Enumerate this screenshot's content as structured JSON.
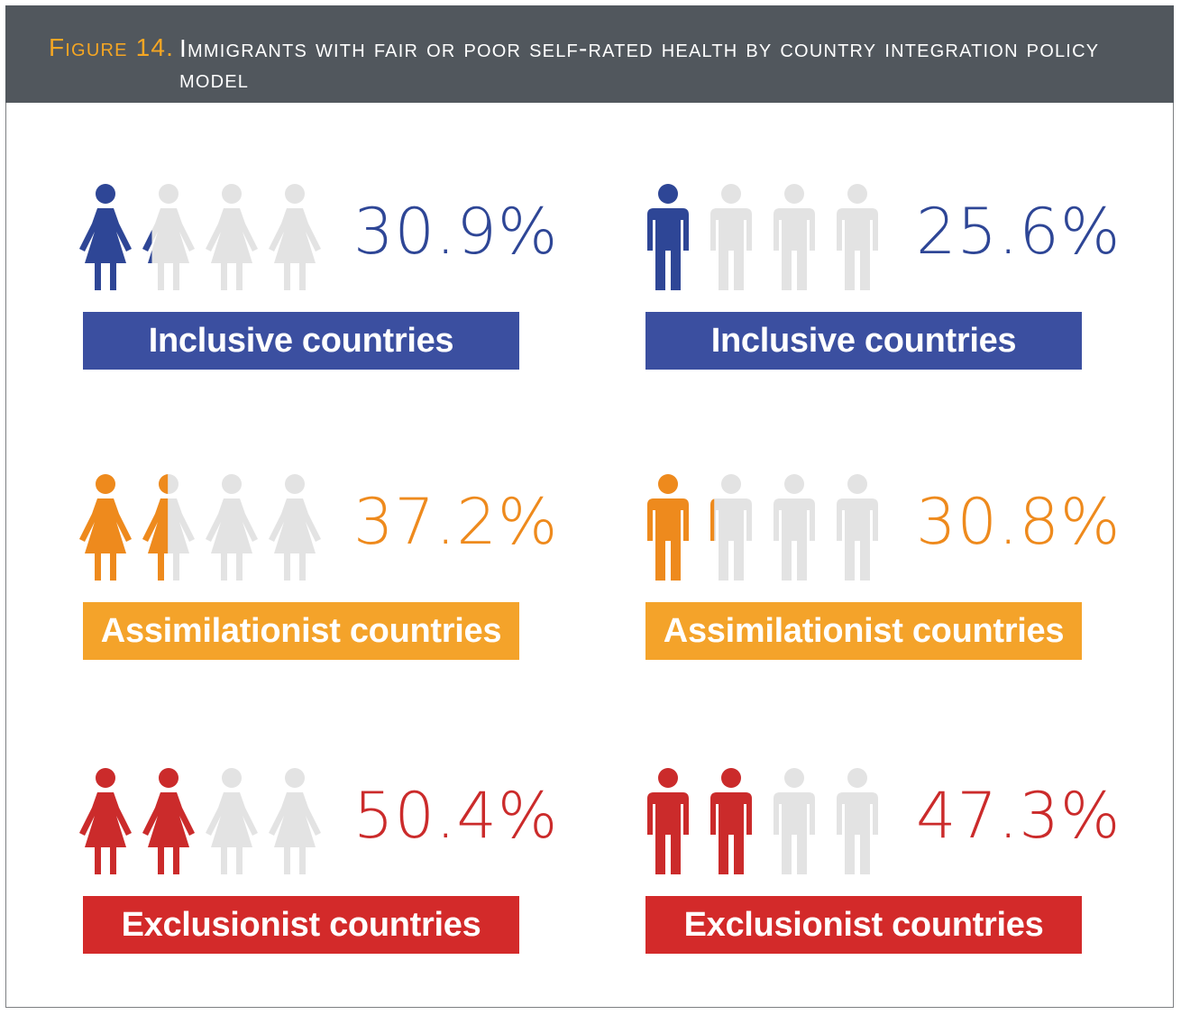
{
  "header": {
    "label": "Figure 14.",
    "title": "Immigrants with fair or poor self-rated health by country integration policy model"
  },
  "colors": {
    "inclusive": "#2e4696",
    "inclusive_band": "#3b4fa0",
    "assimilationist": "#ee8a1d",
    "assimilationist_band": "#f4a32a",
    "exclusionist": "#cb2b2b",
    "exclusionist_band": "#d32a2a",
    "empty_icon": "#e3e3e3"
  },
  "chart_data": {
    "type": "pictogram",
    "icons_per_row": 4,
    "series": [
      {
        "name": "women",
        "icon": "woman-icon",
        "rows": [
          {
            "category": "Inclusive countries",
            "value": 30.9,
            "label": "30.9%",
            "color_key": "inclusive"
          },
          {
            "category": "Assimilationist countries",
            "value": 37.2,
            "label": "37.2%",
            "color_key": "assimilationist"
          },
          {
            "category": "Exclusionist countries",
            "value": 50.4,
            "label": "50.4%",
            "color_key": "exclusionist"
          }
        ]
      },
      {
        "name": "men",
        "icon": "man-icon",
        "rows": [
          {
            "category": "Inclusive countries",
            "value": 25.6,
            "label": "25.6%",
            "color_key": "inclusive"
          },
          {
            "category": "Assimilationist countries",
            "value": 30.8,
            "label": "30.8%",
            "color_key": "assimilationist"
          },
          {
            "category": "Exclusionist countries",
            "value": 47.3,
            "label": "47.3%",
            "color_key": "exclusionist"
          }
        ]
      }
    ]
  }
}
